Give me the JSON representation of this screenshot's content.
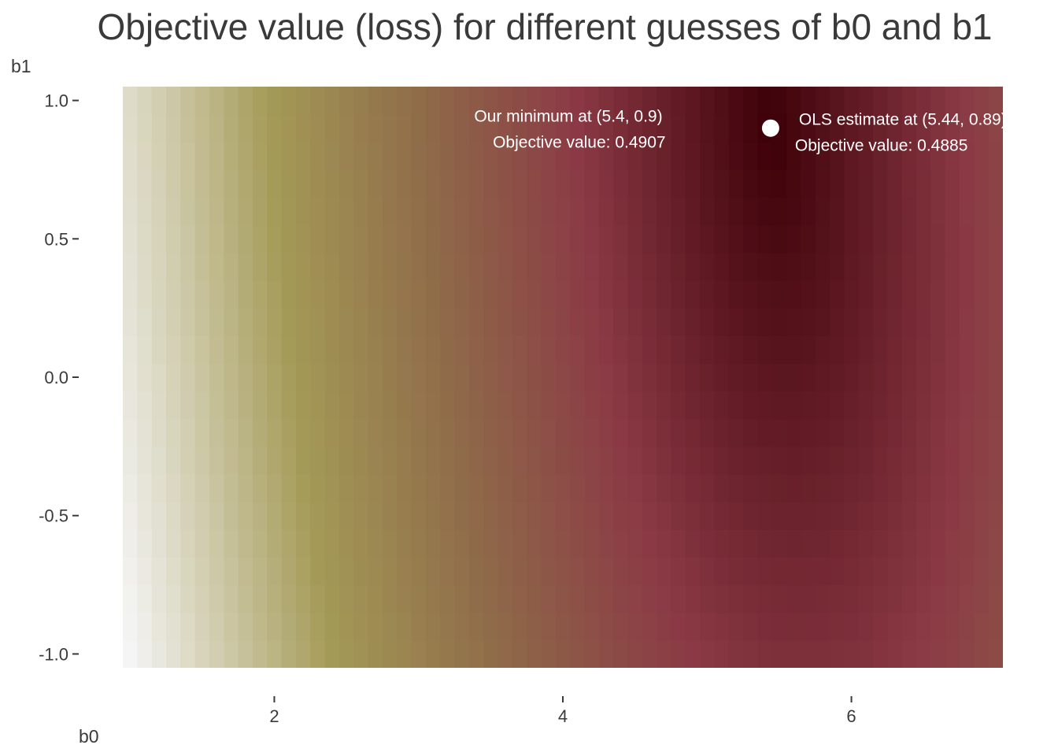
{
  "chart_data": {
    "type": "heatmap",
    "title": "Objective value (loss) for different guesses of b0 and b1",
    "xlabel": "b0",
    "ylabel": "b1",
    "xlim": [
      0.95,
      7.05
    ],
    "ylim": [
      -1.05,
      1.05
    ],
    "x_ticks": [
      {
        "value": 2,
        "label": "2"
      },
      {
        "value": 4,
        "label": "4"
      },
      {
        "value": 6,
        "label": "6"
      }
    ],
    "y_ticks": [
      {
        "value": 1.0,
        "label": "1.0"
      },
      {
        "value": 0.5,
        "label": "0.5"
      },
      {
        "value": 0.0,
        "label": "0.0"
      },
      {
        "value": -0.5,
        "label": "-0.5"
      },
      {
        "value": -1.0,
        "label": "-1.0"
      }
    ],
    "grid": {
      "b0_start": 1.0,
      "b0_end": 7.0,
      "b0_step": 0.1,
      "b1_start": -1.0,
      "b1_end": 1.0,
      "b1_step": 0.1
    },
    "colors": {
      "low": "#3d0008",
      "mid_low": "#8b3a45",
      "mid": "#8f6b49",
      "mid_high": "#a49a57",
      "high": "#f5f5f5"
    },
    "annotations": {
      "minimum": {
        "b0": 5.4,
        "b1": 0.9,
        "line1": "Our minimum at (5.4, 0.9)",
        "line2": "Objective value:   0.4907"
      },
      "ols": {
        "b0": 5.44,
        "b1": 0.9,
        "line1": "OLS estimate at (5.44, 0.89)",
        "line2": "Objective value: 0.4885"
      }
    }
  }
}
